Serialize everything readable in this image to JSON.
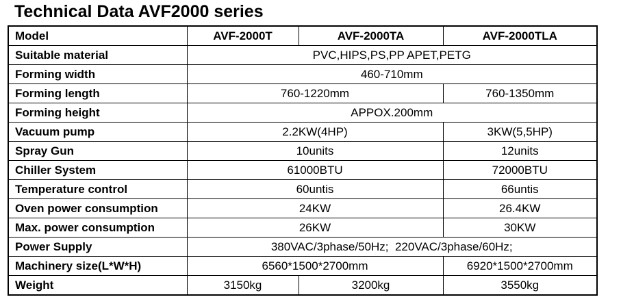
{
  "title": "Technical Data AVF2000 series",
  "header": {
    "label": "Model",
    "models": [
      "AVF-2000T",
      "AVF-2000TA",
      "AVF-2000TLA"
    ]
  },
  "rows": {
    "suitable_material": {
      "label": "Suitable material",
      "all": "PVC,HIPS,PS,PP APET,PETG"
    },
    "forming_width": {
      "label": "Forming width",
      "all": "460-710mm"
    },
    "forming_length": {
      "label": "Forming length",
      "t_ta": "760-1220mm",
      "tla": "760-1350mm"
    },
    "forming_height": {
      "label": "Forming height",
      "all": "APPOX.200mm"
    },
    "vacuum_pump": {
      "label": "Vacuum pump",
      "t_ta": "2.2KW(4HP)",
      "tla": "3KW(5,5HP)"
    },
    "spray_gun": {
      "label": "Spray Gun",
      "t_ta": "10units",
      "tla": "12units"
    },
    "chiller_system": {
      "label": "Chiller System",
      "t_ta": "61000BTU",
      "tla": "72000BTU"
    },
    "temperature_control": {
      "label": "Temperature control",
      "t_ta": "60untis",
      "tla": "66untis"
    },
    "oven_power": {
      "label": "Oven power consumption",
      "t_ta": "24KW",
      "tla": "26.4KW"
    },
    "max_power": {
      "label": "Max. power consumption",
      "t_ta": "26KW",
      "tla": "30KW"
    },
    "power_supply": {
      "label": "Power Supply",
      "all": "380VAC/3phase/50Hz;  220VAC/3phase/60Hz;"
    },
    "machinery_size": {
      "label": "Machinery size(L*W*H)",
      "t_ta": "6560*1500*2700mm",
      "tla": "6920*1500*2700mm"
    },
    "weight": {
      "label": "Weight",
      "t": "3150kg",
      "ta": "3200kg",
      "tla": "3550kg"
    }
  }
}
